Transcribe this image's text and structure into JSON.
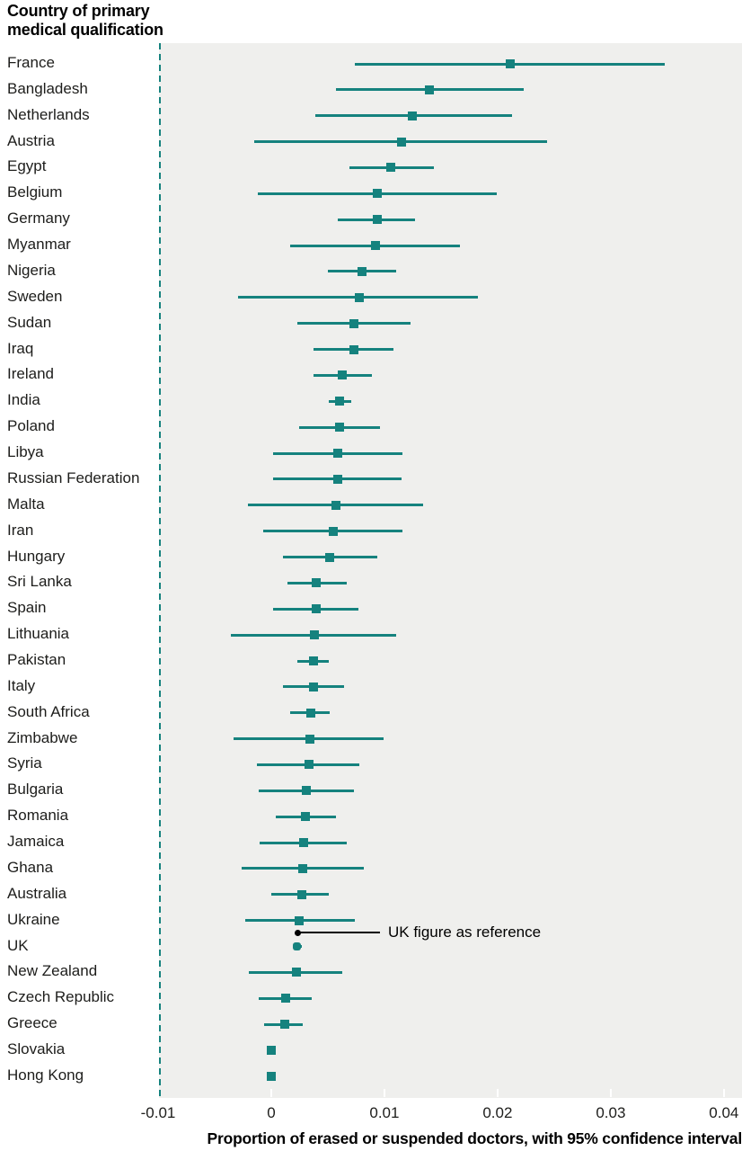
{
  "header": {
    "column_title": "Country of primary medical qualification"
  },
  "annotation": {
    "label": "UK figure as reference"
  },
  "colors": {
    "series_teal": "#15827e",
    "plot_background": "#efefed",
    "reference_annotation": "#000000",
    "text": "#1d1d1b"
  },
  "chart_data": {
    "type": "scatter",
    "subtype": "forest-plot-with-95pct-confidence-intervals",
    "title": "Country of primary medical qualification",
    "xlabel": "Proportion of erased or suspended doctors, with 95% confidence interval",
    "ylabel": "",
    "grid": false,
    "legend": "none",
    "x_axis": {
      "min": -0.00992,
      "max": 0.0416,
      "ticks": [
        -0.01,
        0,
        0.01,
        0.02,
        0.03,
        0.04
      ],
      "tick_labels": [
        "-0.01",
        "0",
        "0.01",
        "0.02",
        "0.03",
        "0.04"
      ]
    },
    "reference_line": 0.0023,
    "reference_note": "UK figure as reference",
    "rows": [
      {
        "country": "France",
        "estimate": 0.0211,
        "ci_low": 0.0074,
        "ci_high": 0.0348
      },
      {
        "country": "Bangladesh",
        "estimate": 0.014,
        "ci_low": 0.0057,
        "ci_high": 0.0223
      },
      {
        "country": "Netherlands",
        "estimate": 0.0125,
        "ci_low": 0.0039,
        "ci_high": 0.0213
      },
      {
        "country": "Austria",
        "estimate": 0.0115,
        "ci_low": -0.0015,
        "ci_high": 0.0244
      },
      {
        "country": "Egypt",
        "estimate": 0.0106,
        "ci_low": 0.0069,
        "ci_high": 0.0144
      },
      {
        "country": "Belgium",
        "estimate": 0.0094,
        "ci_low": -0.0012,
        "ci_high": 0.0199
      },
      {
        "country": "Germany",
        "estimate": 0.0094,
        "ci_low": 0.0059,
        "ci_high": 0.0127
      },
      {
        "country": "Myanmar",
        "estimate": 0.0092,
        "ci_low": 0.0017,
        "ci_high": 0.0167
      },
      {
        "country": "Nigeria",
        "estimate": 0.008,
        "ci_low": 0.005,
        "ci_high": 0.011
      },
      {
        "country": "Sweden",
        "estimate": 0.0078,
        "ci_low": -0.0029,
        "ci_high": 0.0183
      },
      {
        "country": "Sudan",
        "estimate": 0.0073,
        "ci_low": 0.0023,
        "ci_high": 0.0123
      },
      {
        "country": "Iraq",
        "estimate": 0.0073,
        "ci_low": 0.0037,
        "ci_high": 0.0108
      },
      {
        "country": "Ireland",
        "estimate": 0.0063,
        "ci_low": 0.0037,
        "ci_high": 0.0089
      },
      {
        "country": "India",
        "estimate": 0.006,
        "ci_low": 0.0051,
        "ci_high": 0.0071
      },
      {
        "country": "Poland",
        "estimate": 0.006,
        "ci_low": 0.0025,
        "ci_high": 0.0096
      },
      {
        "country": "Libya",
        "estimate": 0.0059,
        "ci_low": 0.0002,
        "ci_high": 0.0116
      },
      {
        "country": "Russian Federation",
        "estimate": 0.0059,
        "ci_low": 0.0002,
        "ci_high": 0.0115
      },
      {
        "country": "Malta",
        "estimate": 0.0057,
        "ci_low": -0.0021,
        "ci_high": 0.0134
      },
      {
        "country": "Iran",
        "estimate": 0.0055,
        "ci_low": -0.0007,
        "ci_high": 0.0116
      },
      {
        "country": "Hungary",
        "estimate": 0.0052,
        "ci_low": 0.001,
        "ci_high": 0.0094
      },
      {
        "country": "Sri Lanka",
        "estimate": 0.004,
        "ci_low": 0.0014,
        "ci_high": 0.0067
      },
      {
        "country": "Spain",
        "estimate": 0.004,
        "ci_low": 0.0002,
        "ci_high": 0.0077
      },
      {
        "country": "Lithuania",
        "estimate": 0.0038,
        "ci_low": -0.0036,
        "ci_high": 0.011
      },
      {
        "country": "Pakistan",
        "estimate": 0.0037,
        "ci_low": 0.0023,
        "ci_high": 0.0051
      },
      {
        "country": "Italy",
        "estimate": 0.0037,
        "ci_low": 0.001,
        "ci_high": 0.0064
      },
      {
        "country": "South Africa",
        "estimate": 0.0035,
        "ci_low": 0.0017,
        "ci_high": 0.0052
      },
      {
        "country": "Zimbabwe",
        "estimate": 0.0034,
        "ci_low": -0.0033,
        "ci_high": 0.0099
      },
      {
        "country": "Syria",
        "estimate": 0.0033,
        "ci_low": -0.0013,
        "ci_high": 0.0078
      },
      {
        "country": "Bulgaria",
        "estimate": 0.0031,
        "ci_low": -0.0011,
        "ci_high": 0.0073
      },
      {
        "country": "Romania",
        "estimate": 0.003,
        "ci_low": 0.0004,
        "ci_high": 0.0057
      },
      {
        "country": "Jamaica",
        "estimate": 0.0029,
        "ci_low": -0.001,
        "ci_high": 0.0067
      },
      {
        "country": "Ghana",
        "estimate": 0.0028,
        "ci_low": -0.0026,
        "ci_high": 0.0082
      },
      {
        "country": "Australia",
        "estimate": 0.0027,
        "ci_low": 0.0,
        "ci_high": 0.0051
      },
      {
        "country": "Ukraine",
        "estimate": 0.0025,
        "ci_low": -0.0023,
        "ci_high": 0.0074
      },
      {
        "country": "UK",
        "estimate": 0.0023,
        "ci_low": 0.002,
        "ci_high": 0.0027,
        "is_reference": true
      },
      {
        "country": "New Zealand",
        "estimate": 0.0022,
        "ci_low": -0.002,
        "ci_high": 0.0063
      },
      {
        "country": "Czech Republic",
        "estimate": 0.0013,
        "ci_low": -0.0011,
        "ci_high": 0.0036
      },
      {
        "country": "Greece",
        "estimate": 0.0012,
        "ci_low": -0.0006,
        "ci_high": 0.0028
      },
      {
        "country": "Slovakia",
        "estimate": 0.0,
        "ci_low": 0.0,
        "ci_high": 0.0
      },
      {
        "country": "Hong Kong",
        "estimate": 0.0,
        "ci_low": 0.0,
        "ci_high": 0.0
      }
    ]
  }
}
